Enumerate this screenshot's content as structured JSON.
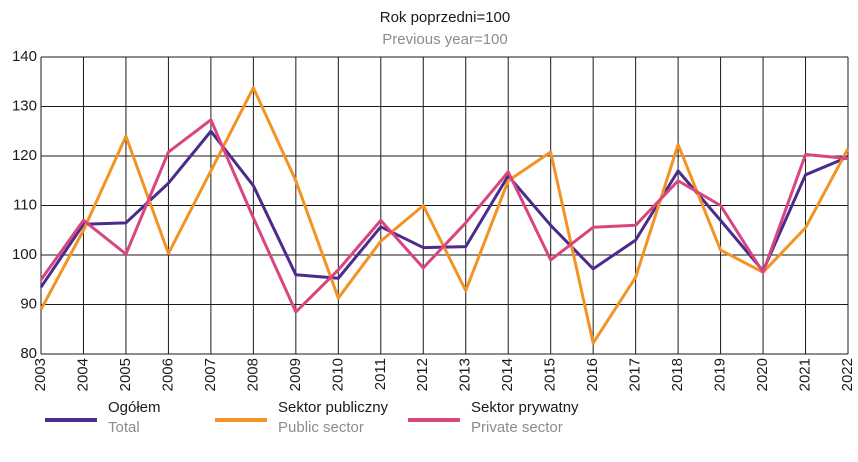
{
  "chart_data": {
    "type": "line",
    "title": "Rok poprzedni=100",
    "subtitle": "Previous year=100",
    "categories": [
      "2003",
      "2004",
      "2005",
      "2006",
      "2007",
      "2008",
      "2009",
      "2010",
      "2011",
      "2012",
      "2013",
      "2014",
      "2015",
      "2016",
      "2017",
      "2018",
      "2019",
      "2020",
      "2021",
      "2022"
    ],
    "series": [
      {
        "name": "Ogółem",
        "name_en": "Total",
        "color": "#4b2c8c",
        "values": [
          93.5,
          106.2,
          106.5,
          114.5,
          125,
          114,
          96,
          95.3,
          105.7,
          101.5,
          101.7,
          116,
          106,
          97.2,
          103,
          117,
          107,
          96.8,
          116.2,
          119.8
        ]
      },
      {
        "name": "Sektor publiczny",
        "name_en": "Public sector",
        "color": "#f39324",
        "values": [
          89,
          105,
          124,
          100.3,
          117,
          133.8,
          115,
          91.3,
          102.8,
          110,
          92.8,
          115,
          120.8,
          82.2,
          95.5,
          122.3,
          101,
          96.5,
          105.5,
          121.5
        ]
      },
      {
        "name": "Sektor prywatny",
        "name_en": "Private sector",
        "color": "#d9457f",
        "values": [
          95,
          107,
          100.2,
          120.8,
          127.3,
          107.5,
          88.5,
          97,
          107,
          97.4,
          106.5,
          116.8,
          99,
          105.6,
          106,
          115,
          110,
          96.5,
          120.3,
          119.5
        ]
      }
    ],
    "ylim": [
      80,
      140
    ],
    "yticks": [
      80,
      90,
      100,
      110,
      120,
      130,
      140
    ],
    "grid": true
  }
}
